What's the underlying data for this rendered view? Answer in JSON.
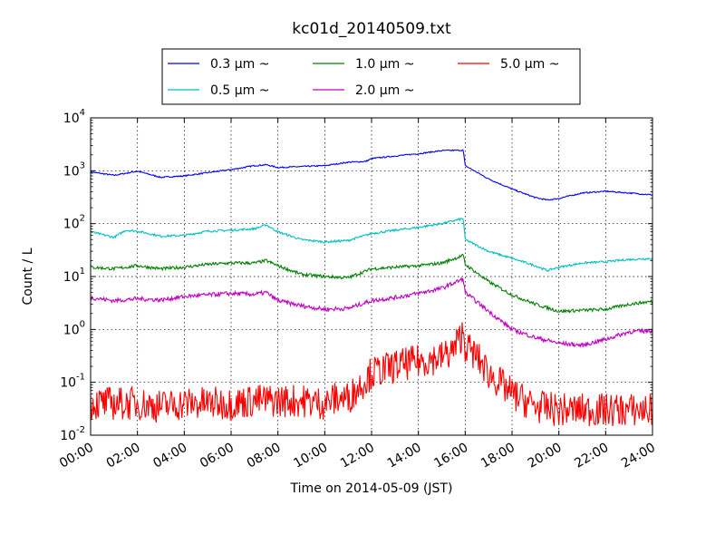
{
  "chart_data": {
    "type": "line",
    "title": "kc01d_20140509.txt",
    "xlabel": "Time on 2014-05-09 (JST)",
    "ylabel": "Count / L",
    "y_scale": "log",
    "ylim": [
      0.01,
      10000
    ],
    "xlim_hours": [
      0,
      24
    ],
    "grid": true,
    "legend_placement": "top, above plot",
    "x_tick_labels": [
      "00:00",
      "02:00",
      "04:00",
      "06:00",
      "08:00",
      "10:00",
      "12:00",
      "14:00",
      "16:00",
      "18:00",
      "20:00",
      "22:00",
      "24:00"
    ],
    "y_tick_labels": [
      {
        "base": "10",
        "exp": "-2"
      },
      {
        "base": "10",
        "exp": "-1"
      },
      {
        "base": "10",
        "exp": "0"
      },
      {
        "base": "10",
        "exp": "1"
      },
      {
        "base": "10",
        "exp": "2"
      },
      {
        "base": "10",
        "exp": "3"
      },
      {
        "base": "10",
        "exp": "4"
      }
    ],
    "series": [
      {
        "name": "0.3 μm ~",
        "color": "#0000ff",
        "noise": 0.012,
        "x": [
          "00:00",
          "01:00",
          "02:00",
          "03:00",
          "04:00",
          "05:00",
          "06:00",
          "07:00",
          "07:30",
          "08:00",
          "09:00",
          "10:00",
          "11:00",
          "11:45",
          "12:00",
          "13:00",
          "14:00",
          "15:00",
          "15:55",
          "16:00",
          "17:00",
          "18:00",
          "19:00",
          "19:30",
          "20:00",
          "21:00",
          "22:00",
          "23:00",
          "24:00"
        ],
        "y": [
          950,
          820,
          980,
          750,
          800,
          920,
          1050,
          1250,
          1300,
          1150,
          1200,
          1250,
          1450,
          1500,
          1700,
          1900,
          2100,
          2400,
          2450,
          1250,
          700,
          450,
          310,
          280,
          300,
          380,
          410,
          380,
          350
        ]
      },
      {
        "name": "0.5 μm ~",
        "color": "#00bfbf",
        "noise": 0.02,
        "x": [
          "00:00",
          "01:00",
          "01:30",
          "02:00",
          "03:00",
          "04:00",
          "05:00",
          "06:00",
          "07:00",
          "07:30",
          "08:00",
          "09:00",
          "10:00",
          "11:00",
          "12:00",
          "13:00",
          "14:00",
          "15:00",
          "15:55",
          "16:00",
          "17:00",
          "18:00",
          "19:00",
          "19:30",
          "20:00",
          "21:00",
          "22:00",
          "23:00",
          "24:00"
        ],
        "y": [
          70,
          55,
          75,
          72,
          58,
          60,
          72,
          75,
          80,
          95,
          70,
          50,
          45,
          48,
          65,
          75,
          85,
          100,
          125,
          50,
          30,
          22,
          16,
          13,
          15,
          18,
          19,
          21,
          22
        ]
      },
      {
        "name": "1.0 μm ~",
        "color": "#008000",
        "noise": 0.03,
        "x": [
          "00:00",
          "01:00",
          "02:00",
          "03:00",
          "04:00",
          "05:00",
          "06:00",
          "07:00",
          "07:30",
          "08:00",
          "09:00",
          "10:00",
          "11:00",
          "12:00",
          "13:00",
          "14:00",
          "15:00",
          "15:55",
          "16:00",
          "17:00",
          "18:00",
          "19:00",
          "20:00",
          "21:00",
          "22:00",
          "23:00",
          "24:00"
        ],
        "y": [
          15,
          14,
          16,
          14,
          15,
          17,
          18,
          18,
          20,
          16,
          11,
          10,
          9.5,
          14,
          15,
          16,
          18,
          25,
          17,
          8,
          4.5,
          3,
          2.2,
          2.3,
          2.4,
          3,
          3.4
        ]
      },
      {
        "name": "2.0 μm ~",
        "color": "#bf00bf",
        "noise": 0.04,
        "x": [
          "00:00",
          "01:00",
          "02:00",
          "03:00",
          "04:00",
          "05:00",
          "06:00",
          "07:00",
          "07:30",
          "08:00",
          "09:00",
          "10:00",
          "11:00",
          "12:00",
          "13:00",
          "14:00",
          "15:00",
          "15:55",
          "16:00",
          "17:00",
          "18:00",
          "19:00",
          "20:00",
          "21:00",
          "22:00",
          "23:00",
          "24:00"
        ],
        "y": [
          4,
          3.5,
          3.8,
          3.6,
          4.2,
          4.5,
          4.8,
          4.6,
          5,
          3.5,
          2.8,
          2.4,
          2.5,
          3.5,
          4,
          4.8,
          6,
          9,
          5,
          2.2,
          1,
          0.7,
          0.55,
          0.5,
          0.65,
          0.9,
          0.95
        ]
      },
      {
        "name": "5.0 μm ~",
        "color": "#ff0000",
        "noise": 0.32,
        "x": [
          "00:00",
          "01:00",
          "02:00",
          "03:00",
          "04:00",
          "05:00",
          "06:00",
          "07:00",
          "08:00",
          "09:00",
          "10:00",
          "10:30",
          "11:00",
          "12:00",
          "13:00",
          "14:00",
          "15:00",
          "15:30",
          "15:55",
          "16:00",
          "16:30",
          "17:00",
          "18:00",
          "19:00",
          "20:00",
          "21:00",
          "22:00",
          "23:00",
          "24:00"
        ],
        "y": [
          0.04,
          0.04,
          0.04,
          0.035,
          0.04,
          0.04,
          0.04,
          0.045,
          0.045,
          0.045,
          0.04,
          0.05,
          0.05,
          0.15,
          0.2,
          0.25,
          0.3,
          0.4,
          0.9,
          0.5,
          0.3,
          0.15,
          0.06,
          0.035,
          0.03,
          0.03,
          0.03,
          0.03,
          0.03
        ]
      }
    ]
  }
}
